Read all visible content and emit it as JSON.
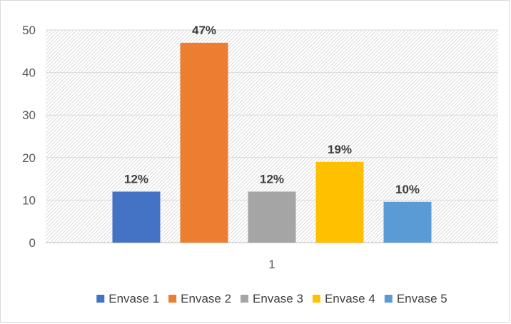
{
  "chart_data": {
    "type": "bar",
    "title": "",
    "xlabel": "",
    "ylabel": "",
    "categories": [
      "1"
    ],
    "ylim": [
      0,
      50
    ],
    "yticks": [
      0,
      10,
      20,
      30,
      40,
      50
    ],
    "grid": true,
    "legend_position": "bottom",
    "series": [
      {
        "name": "Envase 1",
        "values": [
          12
        ],
        "label": "12%",
        "color": "#4472C4"
      },
      {
        "name": "Envase 2",
        "values": [
          47
        ],
        "label": "47%",
        "color": "#ED7D31"
      },
      {
        "name": "Envase 3",
        "values": [
          12
        ],
        "label": "12%",
        "color": "#A5A5A5"
      },
      {
        "name": "Envase 4",
        "values": [
          19
        ],
        "label": "19%",
        "color": "#FFC000"
      },
      {
        "name": "Envase 5",
        "values": [
          9.6
        ],
        "label": "10%",
        "color": "#5B9BD5"
      }
    ]
  }
}
